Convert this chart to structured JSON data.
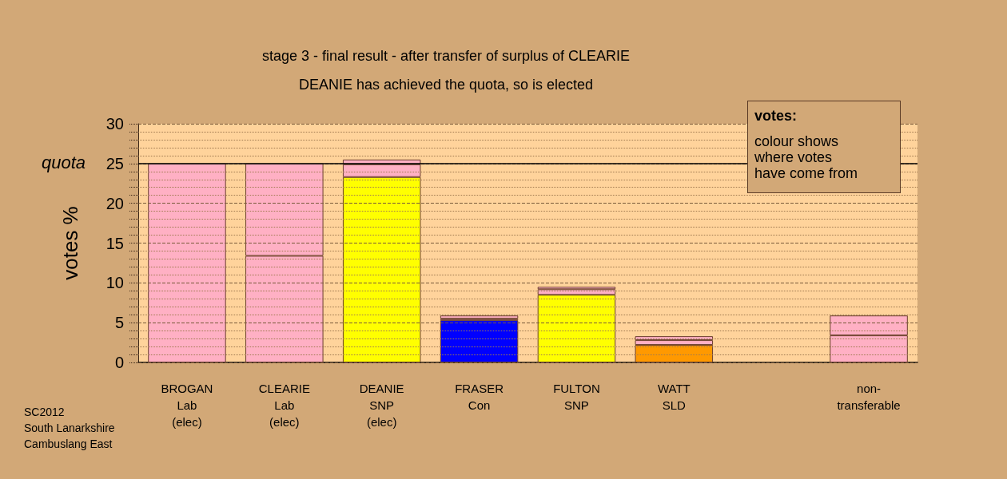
{
  "chart_data": {
    "type": "bar",
    "title": "stage 3 - final result - after transfer of surplus of CLEARIE",
    "subtitle": "DEANIE has achieved the quota, so is elected",
    "ylabel": "votes %",
    "categories": [
      "BROGAN\nLab\n(elec)",
      "CLEARIE\nLab\n(elec)",
      "DEANIE\nSNP\n(elec)",
      "FRASER\nCon",
      "FULTON\nSNP",
      "WATT\nSLD",
      null,
      "non-\ntransferable"
    ],
    "stacked": true,
    "series": [
      {
        "colors": [
          "#ffb0c4",
          "#ffb0c4",
          "#ffff00",
          "#0000ff",
          "#ffff00",
          "#ff9900",
          null,
          "#ffb0c4"
        ],
        "values": [
          25.0,
          13.4,
          23.3,
          5.3,
          8.5,
          2.2,
          null,
          3.4
        ]
      },
      {
        "color": "#ffb0c4",
        "values": [
          null,
          11.6,
          1.6,
          0.2,
          0.7,
          0.6,
          null,
          2.5
        ]
      },
      {
        "color": "#ffb0c4",
        "values": [
          null,
          null,
          0.6,
          0.4,
          0.3,
          0.5,
          null,
          null
        ]
      }
    ],
    "ylim": [
      0,
      30
    ],
    "yticks": [
      0,
      {
        "value": 1,
        "label": null
      },
      {
        "value": 2,
        "label": null
      },
      {
        "value": 3,
        "label": null
      },
      {
        "value": 4,
        "label": null
      },
      5,
      {
        "value": 6,
        "label": null
      },
      {
        "value": 7,
        "label": null
      },
      {
        "value": 8,
        "label": null
      },
      {
        "value": 9,
        "label": null
      },
      10,
      {
        "value": 11,
        "label": null
      },
      {
        "value": 12,
        "label": null
      },
      {
        "value": 13,
        "label": null
      },
      {
        "value": 14,
        "label": null
      },
      15,
      {
        "value": 16,
        "label": null
      },
      {
        "value": 17,
        "label": null
      },
      {
        "value": 18,
        "label": null
      },
      {
        "value": 19,
        "label": null
      },
      20,
      {
        "value": 21,
        "label": null
      },
      {
        "value": 22,
        "label": null
      },
      {
        "value": 23,
        "label": null
      },
      {
        "value": 24,
        "label": null
      },
      25,
      {
        "value": 26,
        "label": null
      },
      {
        "value": 27,
        "label": null
      },
      {
        "value": 28,
        "label": null
      },
      {
        "value": 29,
        "label": null
      },
      30
    ],
    "grid": "y",
    "ref_lines": [
      {
        "axis": "y",
        "value": 25,
        "label": "quota"
      }
    ],
    "annotations": [
      "votes:\ncolour shows\nwhere votes\nhave come from",
      "SC2012\nSouth Lanarkshire\nCambuslang East"
    ]
  }
}
